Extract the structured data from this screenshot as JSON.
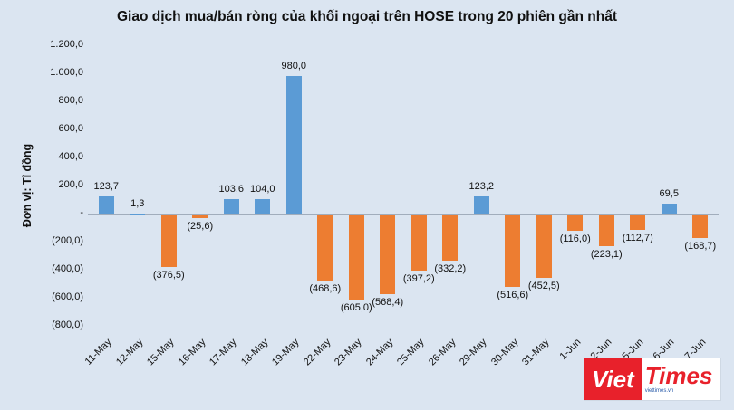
{
  "title": "Giao dịch mua/bán ròng của khối ngoại trên HOSE trong 20 phiên gần nhất",
  "y_axis": {
    "title": "Đơn vị: Tỉ đồng"
  },
  "colors": {
    "background": "#dbe5f1",
    "positive": "#5b9bd5",
    "negative": "#ed7d31",
    "logo_red": "#e8212b"
  },
  "logo": {
    "part1": "Viet",
    "part2": "Times",
    "tagline": "viettimes.vn"
  },
  "chart_data": {
    "type": "bar",
    "title": "Giao dịch mua/bán ròng của khối ngoại trên HOSE trong 20 phiên gần nhất",
    "xlabel": "",
    "ylabel": "Đơn vị: Tỉ đồng",
    "ylim": [
      -800,
      1200
    ],
    "grid": false,
    "legend": "none",
    "categories": [
      "11-May",
      "12-May",
      "15-May",
      "16-May",
      "17-May",
      "18-May",
      "19-May",
      "22-May",
      "23-May",
      "24-May",
      "25-May",
      "26-May",
      "29-May",
      "30-May",
      "31-May",
      "1-Jun",
      "2-Jun",
      "5-Jun",
      "6-Jun",
      "7-Jun"
    ],
    "values": [
      123.7,
      1.3,
      -376.5,
      -25.6,
      103.6,
      104.0,
      980.0,
      -468.6,
      -605.0,
      -568.4,
      -397.2,
      -332.2,
      123.2,
      -516.6,
      -452.5,
      -116.0,
      -223.1,
      -112.7,
      69.5,
      -168.7
    ],
    "labels": [
      "123,7",
      "1,3",
      "(376,5)",
      "(25,6)",
      "103,6",
      "104,0",
      "980,0",
      "(468,6)",
      "(605,0)",
      "(568,4)",
      "(397,2)",
      "(332,2)",
      "123,2",
      "(516,6)",
      "(452,5)",
      "(116,0)",
      "(223,1)",
      "(112,7)",
      "69,5",
      "(168,7)"
    ],
    "y_ticks": [
      "1.200,0",
      "1.000,0",
      "800,0",
      "600,0",
      "400,0",
      "200,0",
      "-",
      "(200,0)",
      "(400,0)",
      "(600,0)",
      "(800,0)"
    ]
  }
}
